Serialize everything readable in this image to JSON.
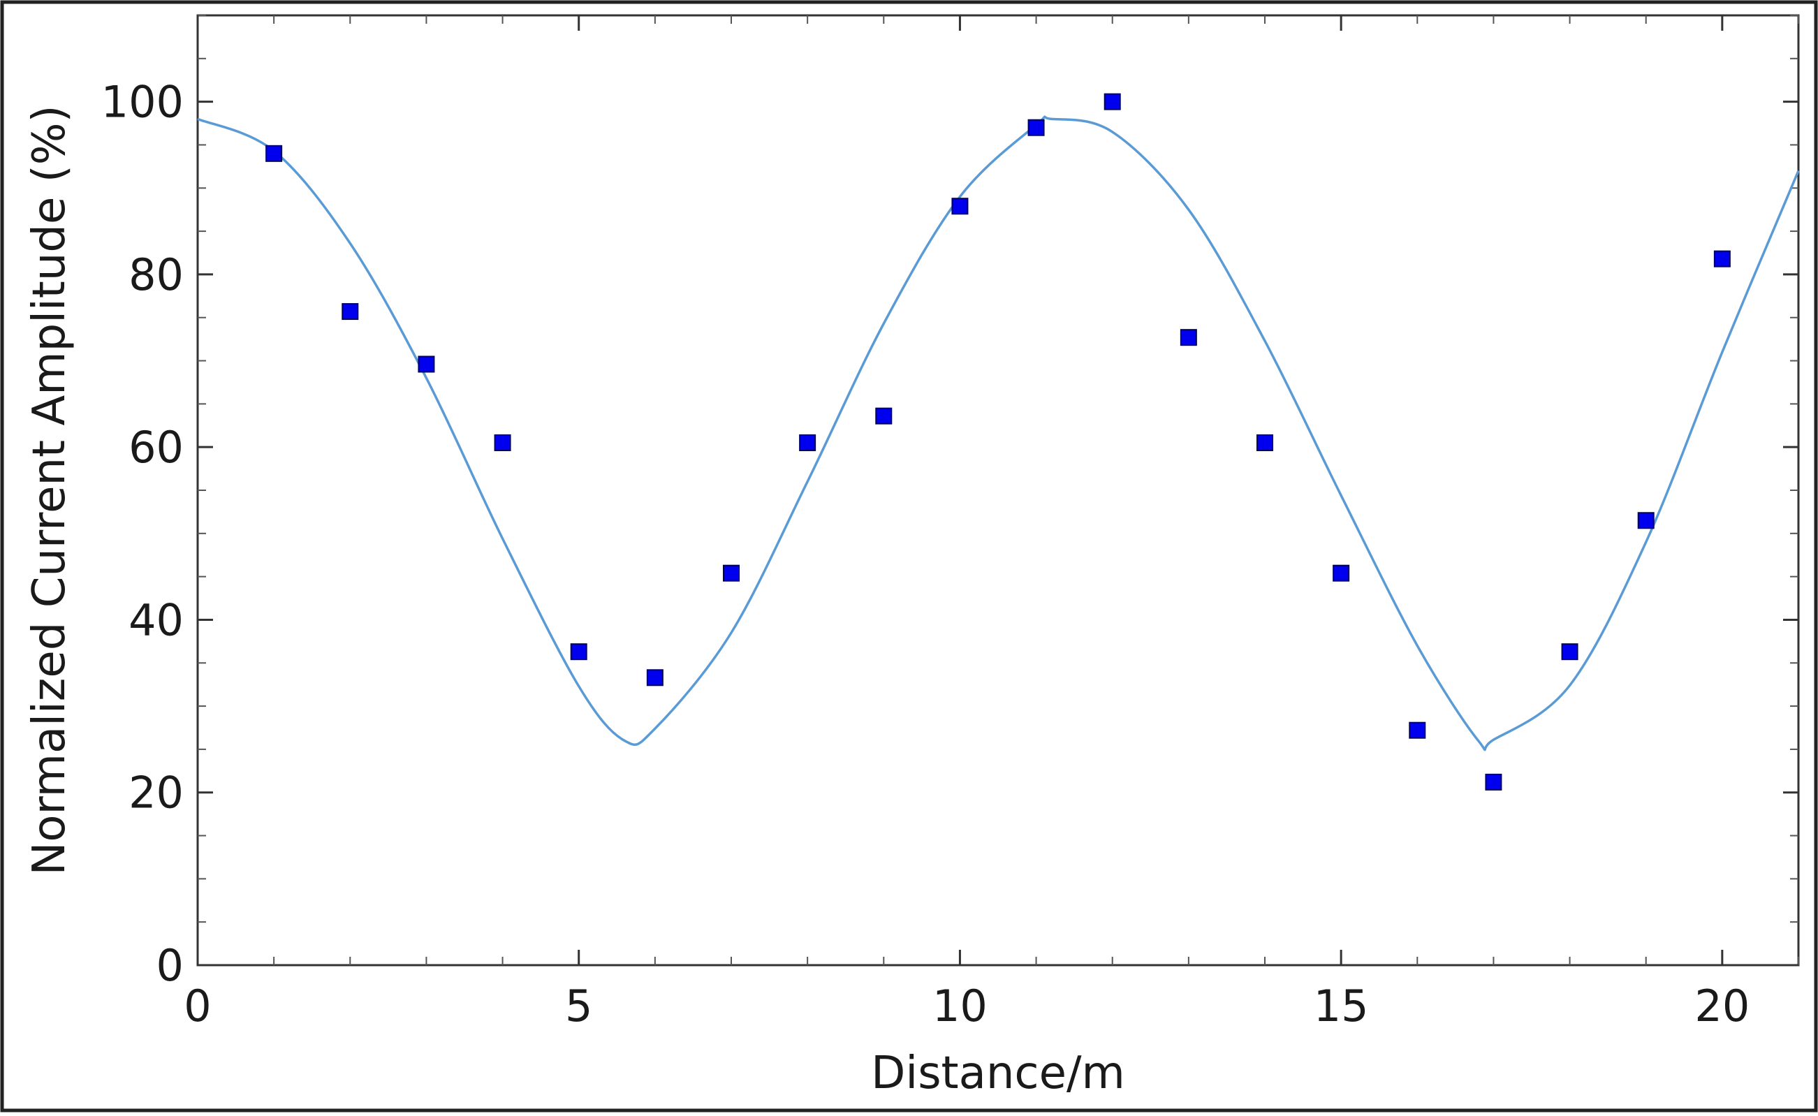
{
  "chart_data": {
    "type": "scatter",
    "xlabel": "Distance/m",
    "ylabel": "Normalized Current Amplitude (%)",
    "xlim": [
      0,
      21
    ],
    "ylim": [
      0,
      110
    ],
    "x_ticks": [
      0,
      5,
      10,
      15,
      20
    ],
    "y_ticks": [
      0,
      20,
      40,
      60,
      80,
      100
    ],
    "grid": false,
    "series": [
      {
        "kind": "points",
        "marker": "square",
        "color": "#0000ee",
        "points": [
          {
            "x": 1,
            "y": 94
          },
          {
            "x": 2,
            "y": 75.7
          },
          {
            "x": 3,
            "y": 69.6
          },
          {
            "x": 4,
            "y": 60.5
          },
          {
            "x": 5,
            "y": 36.3
          },
          {
            "x": 6,
            "y": 33.3
          },
          {
            "x": 7,
            "y": 45.4
          },
          {
            "x": 8,
            "y": 60.5
          },
          {
            "x": 9,
            "y": 63.6
          },
          {
            "x": 10,
            "y": 87.9
          },
          {
            "x": 11,
            "y": 97
          },
          {
            "x": 12,
            "y": 100
          },
          {
            "x": 13,
            "y": 72.7
          },
          {
            "x": 14,
            "y": 60.5
          },
          {
            "x": 15,
            "y": 45.4
          },
          {
            "x": 16,
            "y": 27.2
          },
          {
            "x": 17,
            "y": 21.2
          },
          {
            "x": 18,
            "y": 36.3
          },
          {
            "x": 19,
            "y": 51.5
          },
          {
            "x": 20,
            "y": 81.8
          }
        ]
      },
      {
        "kind": "fit-curve",
        "color": "#5b9bd5",
        "points": [
          {
            "x": 0,
            "y": 98
          },
          {
            "x": 1,
            "y": 94.3
          },
          {
            "x": 2,
            "y": 83.6
          },
          {
            "x": 3,
            "y": 68.0
          },
          {
            "x": 4,
            "y": 49.4
          },
          {
            "x": 5,
            "y": 32.3
          },
          {
            "x": 5.6,
            "y": 26
          },
          {
            "x": 6,
            "y": 27.4
          },
          {
            "x": 7,
            "y": 38.5
          },
          {
            "x": 8,
            "y": 56.0
          },
          {
            "x": 9,
            "y": 74.3
          },
          {
            "x": 10,
            "y": 89.0
          },
          {
            "x": 11,
            "y": 97.3
          },
          {
            "x": 11.2,
            "y": 98
          },
          {
            "x": 12,
            "y": 96.5
          },
          {
            "x": 13,
            "y": 87.5
          },
          {
            "x": 14,
            "y": 72.3
          },
          {
            "x": 15,
            "y": 54.4
          },
          {
            "x": 16,
            "y": 37.0
          },
          {
            "x": 16.8,
            "y": 26
          },
          {
            "x": 17,
            "y": 26.1
          },
          {
            "x": 18,
            "y": 32.4
          },
          {
            "x": 19,
            "y": 49.0
          },
          {
            "x": 20,
            "y": 71.0
          },
          {
            "x": 21,
            "y": 92.0
          }
        ]
      }
    ]
  }
}
